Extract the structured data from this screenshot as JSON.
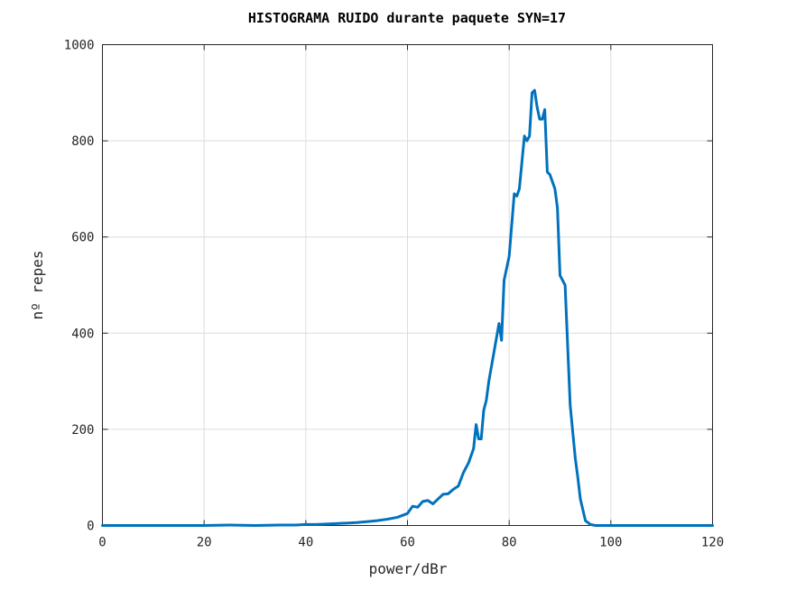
{
  "chart_data": {
    "type": "line",
    "title": "HISTOGRAMA RUIDO durante paquete SYN=17",
    "xlabel": "power/dBr",
    "ylabel": "nº repes",
    "xlim": [
      0,
      120
    ],
    "ylim": [
      0,
      1000
    ],
    "xticks": [
      "0",
      "20",
      "40",
      "60",
      "80",
      "100",
      "120"
    ],
    "yticks": [
      "0",
      "200",
      "400",
      "600",
      "800",
      "1000"
    ],
    "grid": true,
    "legend": "none",
    "line_color": "#0072BD",
    "series": [
      {
        "x": [
          0,
          10,
          20,
          25,
          30,
          35,
          38,
          40,
          42,
          44,
          46,
          48,
          50,
          52,
          54,
          56,
          58,
          60,
          61,
          62,
          63,
          64,
          65,
          66,
          67,
          68,
          69,
          70,
          71,
          72,
          73,
          73.5,
          74,
          74.5,
          75,
          75.5,
          76,
          77,
          78,
          78.5,
          79,
          80,
          81,
          81.5,
          82,
          83,
          83.5,
          84,
          84.5,
          85,
          85.5,
          86,
          86.5,
          87,
          87.5,
          88,
          89,
          89.5,
          90,
          91,
          92,
          93,
          93.5,
          94,
          95,
          96,
          97,
          100,
          110,
          120
        ],
        "y": [
          0,
          0,
          0,
          1,
          0,
          1,
          1,
          2,
          2,
          3,
          4,
          5,
          6,
          8,
          10,
          13,
          17,
          25,
          40,
          38,
          50,
          52,
          45,
          55,
          65,
          66,
          75,
          82,
          110,
          130,
          160,
          210,
          180,
          180,
          240,
          260,
          300,
          360,
          420,
          385,
          510,
          560,
          690,
          685,
          700,
          810,
          800,
          810,
          900,
          905,
          870,
          845,
          845,
          865,
          735,
          730,
          700,
          660,
          520,
          500,
          250,
          140,
          100,
          55,
          10,
          2,
          0,
          0,
          0,
          0
        ]
      }
    ]
  }
}
